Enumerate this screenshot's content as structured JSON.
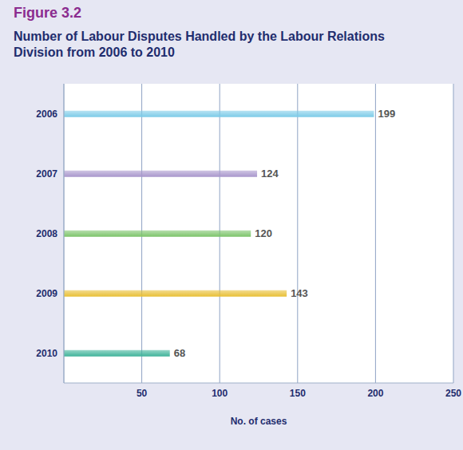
{
  "chart_data": {
    "type": "bar",
    "title": "Figure 3.2",
    "subtitle": "Number of Labour Disputes Handled by the Labour Relations Division from 2006 to 2010",
    "x_label": "No. of cases",
    "categories": [
      "2006",
      "2007",
      "2008",
      "2009",
      "2010"
    ],
    "values": [
      199,
      124,
      120,
      143,
      68
    ],
    "colors": [
      "#7ccbe8",
      "#a896cc",
      "#7cc46a",
      "#e8bf35",
      "#3fb39a"
    ],
    "xlim": [
      0,
      250
    ],
    "xticks": [
      50,
      100,
      150,
      200,
      250
    ],
    "orientation": "horizontal",
    "grid": true,
    "data_labels": true
  }
}
